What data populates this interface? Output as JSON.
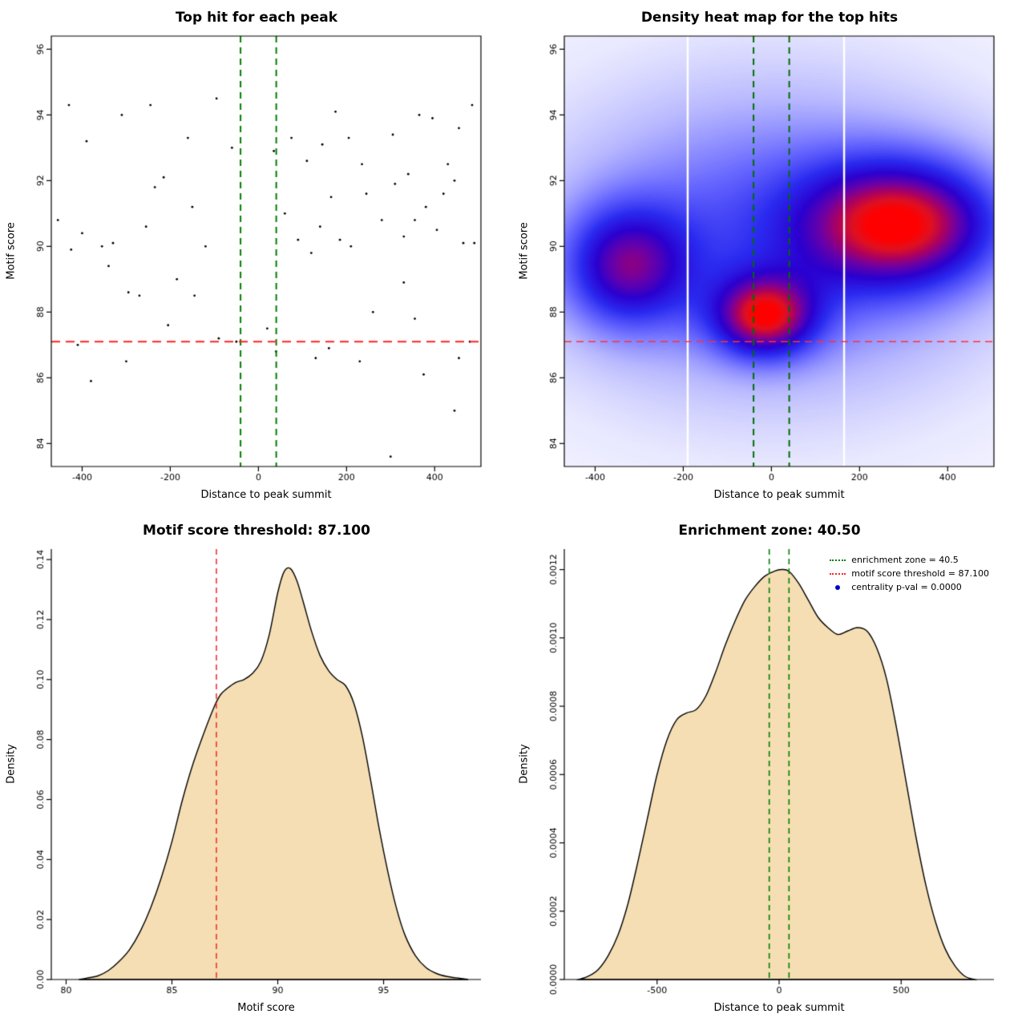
{
  "figure": {
    "background": "#ffffff"
  },
  "chart_data": [
    {
      "type": "scatter",
      "title": "Top hit for each peak",
      "xlabel": "Distance to peak summit",
      "ylabel": "Motif score",
      "xlim": [
        -470,
        505
      ],
      "ylim": [
        83.3,
        96.4
      ],
      "xticks": [
        -400,
        -200,
        0,
        200,
        400
      ],
      "xtick_labels": [
        "-400",
        "-200",
        "0",
        "200",
        "400"
      ],
      "yticks": [
        84,
        86,
        88,
        90,
        92,
        94,
        96
      ],
      "ytick_labels": [
        "84",
        "86",
        "88",
        "90",
        "92",
        "94",
        "96"
      ],
      "frame": "box",
      "grid": false,
      "point_color": "#000000",
      "point_radius": 1.4,
      "points": [
        [
          -455,
          90.8
        ],
        [
          -430,
          94.3
        ],
        [
          -425,
          89.9
        ],
        [
          -410,
          87.0
        ],
        [
          -400,
          90.4
        ],
        [
          -390,
          93.2
        ],
        [
          -380,
          85.9
        ],
        [
          -355,
          90.0
        ],
        [
          -340,
          89.4
        ],
        [
          -330,
          90.1
        ],
        [
          -310,
          94.0
        ],
        [
          -300,
          86.5
        ],
        [
          -295,
          88.6
        ],
        [
          -270,
          88.5
        ],
        [
          -255,
          90.6
        ],
        [
          -245,
          94.3
        ],
        [
          -235,
          91.8
        ],
        [
          -215,
          92.1
        ],
        [
          -205,
          87.6
        ],
        [
          -185,
          89.0
        ],
        [
          -160,
          93.3
        ],
        [
          -150,
          91.2
        ],
        [
          -145,
          88.5
        ],
        [
          -120,
          90.0
        ],
        [
          -95,
          94.5
        ],
        [
          -90,
          87.2
        ],
        [
          -60,
          93.0
        ],
        [
          -50,
          87.1
        ],
        [
          20,
          87.5
        ],
        [
          35,
          92.9
        ],
        [
          40,
          86.8
        ],
        [
          60,
          91.0
        ],
        [
          75,
          93.3
        ],
        [
          90,
          90.2
        ],
        [
          110,
          92.6
        ],
        [
          120,
          89.8
        ],
        [
          130,
          86.6
        ],
        [
          140,
          90.6
        ],
        [
          145,
          93.1
        ],
        [
          160,
          86.9
        ],
        [
          165,
          91.5
        ],
        [
          175,
          94.1
        ],
        [
          185,
          90.2
        ],
        [
          205,
          93.3
        ],
        [
          210,
          90.0
        ],
        [
          230,
          86.5
        ],
        [
          235,
          92.5
        ],
        [
          245,
          91.6
        ],
        [
          260,
          88.0
        ],
        [
          280,
          90.8
        ],
        [
          300,
          83.6
        ],
        [
          305,
          93.4
        ],
        [
          310,
          91.9
        ],
        [
          330,
          88.9
        ],
        [
          330,
          90.3
        ],
        [
          340,
          92.2
        ],
        [
          355,
          87.8
        ],
        [
          355,
          90.8
        ],
        [
          365,
          94.0
        ],
        [
          375,
          86.1
        ],
        [
          380,
          91.2
        ],
        [
          395,
          93.9
        ],
        [
          405,
          90.5
        ],
        [
          420,
          91.6
        ],
        [
          430,
          92.5
        ],
        [
          445,
          85.0
        ],
        [
          445,
          92.0
        ],
        [
          455,
          86.6
        ],
        [
          455,
          93.6
        ],
        [
          465,
          90.1
        ],
        [
          480,
          87.1
        ],
        [
          485,
          94.3
        ],
        [
          490,
          90.1
        ]
      ],
      "hline": {
        "y": 87.1,
        "color": "#ff2222",
        "dash": [
          11,
          7
        ],
        "width": 2
      },
      "vlines": {
        "xs": [
          -40.5,
          40.5
        ],
        "color": "#007d00",
        "dash": [
          8,
          6
        ],
        "width": 2
      }
    },
    {
      "type": "heatmap",
      "title": "Density heat map for the top hits",
      "xlabel": "Distance to peak summit",
      "ylabel": "Motif score",
      "xlim": [
        -470,
        505
      ],
      "ylim": [
        83.3,
        96.4
      ],
      "xticks": [
        -400,
        -200,
        0,
        200,
        400
      ],
      "xtick_labels": [
        "-400",
        "-200",
        "0",
        "200",
        "400"
      ],
      "yticks": [
        84,
        86,
        88,
        90,
        92,
        94,
        96
      ],
      "ytick_labels": [
        "84",
        "86",
        "88",
        "90",
        "92",
        "94",
        "96"
      ],
      "frame": "box",
      "kernels": [
        {
          "x": 300,
          "y": 90.7,
          "sx": 155,
          "sy": 1.35,
          "w": 1.0
        },
        {
          "x": -15,
          "y": 87.85,
          "sx": 80,
          "sy": 0.85,
          "w": 0.93
        },
        {
          "x": -330,
          "y": 89.4,
          "sx": 100,
          "sy": 1.3,
          "w": 0.72
        },
        {
          "x": 10,
          "y": 90.2,
          "sx": 330,
          "sy": 3.0,
          "w": 0.45
        },
        {
          "x": 0,
          "y": 90.0,
          "sx": 620,
          "sy": 6.0,
          "w": 0.22
        }
      ],
      "colormap": [
        {
          "t": 0.0,
          "c": "#ffffff"
        },
        {
          "t": 0.1,
          "c": "#e8e8ff"
        },
        {
          "t": 0.22,
          "c": "#b8b8ff"
        },
        {
          "t": 0.38,
          "c": "#6868ff"
        },
        {
          "t": 0.52,
          "c": "#2a2af0"
        },
        {
          "t": 0.64,
          "c": "#2a00cf"
        },
        {
          "t": 0.74,
          "c": "#6a00a8"
        },
        {
          "t": 0.82,
          "c": "#a80064"
        },
        {
          "t": 0.9,
          "c": "#e01020"
        },
        {
          "t": 0.96,
          "c": "#ff0000"
        },
        {
          "t": 1.0,
          "c": "#ff0000"
        }
      ],
      "white_lines": [
        -190,
        165
      ],
      "hline": {
        "y": 87.1,
        "color": "#ff3333",
        "dash": [
          9,
          6
        ],
        "width": 1.6
      },
      "vlines": {
        "xs": [
          -40.5,
          40.5
        ],
        "color": "#006e00",
        "dash": [
          8,
          6
        ],
        "width": 2
      }
    },
    {
      "type": "density",
      "title": "Motif score threshold: 87.100",
      "xlabel": "Motif score",
      "ylabel": "Density",
      "xlim": [
        79.3,
        99.6
      ],
      "ylim": [
        0,
        0.1435
      ],
      "xticks": [
        80,
        85,
        90,
        95
      ],
      "xtick_labels": [
        "80",
        "85",
        "90",
        "95"
      ],
      "yticks": [
        0,
        0.02,
        0.04,
        0.06,
        0.08,
        0.1,
        0.12,
        0.14
      ],
      "ytick_labels": [
        "0.00",
        "0.02",
        "0.04",
        "0.06",
        "0.08",
        "0.10",
        "0.12",
        "0.14"
      ],
      "frame": "axes",
      "fill": "#f5deb3",
      "stroke": "#000000",
      "curve": [
        [
          80.6,
          0.0
        ],
        [
          81.0,
          0.0005
        ],
        [
          81.5,
          0.0012
        ],
        [
          82.0,
          0.003
        ],
        [
          82.5,
          0.006
        ],
        [
          83.0,
          0.01
        ],
        [
          83.5,
          0.016
        ],
        [
          84.0,
          0.024
        ],
        [
          84.5,
          0.034
        ],
        [
          85.0,
          0.046
        ],
        [
          85.5,
          0.06
        ],
        [
          86.0,
          0.072
        ],
        [
          86.5,
          0.082
        ],
        [
          87.0,
          0.091
        ],
        [
          87.3,
          0.095
        ],
        [
          87.6,
          0.097
        ],
        [
          88.0,
          0.099
        ],
        [
          88.4,
          0.1
        ],
        [
          88.8,
          0.102
        ],
        [
          89.2,
          0.106
        ],
        [
          89.6,
          0.115
        ],
        [
          90.0,
          0.129
        ],
        [
          90.3,
          0.136
        ],
        [
          90.6,
          0.137
        ],
        [
          90.9,
          0.133
        ],
        [
          91.2,
          0.126
        ],
        [
          91.6,
          0.116
        ],
        [
          92.0,
          0.108
        ],
        [
          92.4,
          0.103
        ],
        [
          92.8,
          0.1
        ],
        [
          93.2,
          0.098
        ],
        [
          93.6,
          0.092
        ],
        [
          94.0,
          0.081
        ],
        [
          94.4,
          0.066
        ],
        [
          94.8,
          0.05
        ],
        [
          95.2,
          0.036
        ],
        [
          95.6,
          0.024
        ],
        [
          96.0,
          0.015
        ],
        [
          96.5,
          0.008
        ],
        [
          97.0,
          0.004
        ],
        [
          97.5,
          0.002
        ],
        [
          98.0,
          0.001
        ],
        [
          98.6,
          0.0004
        ],
        [
          99.0,
          0.0
        ]
      ],
      "vlines": {
        "xs": [
          87.1
        ],
        "color": "#ee3333",
        "dash": [
          7,
          5
        ],
        "width": 1.6
      }
    },
    {
      "type": "density",
      "title": "Enrichment zone: 40.50",
      "xlabel": "Distance to peak summit",
      "ylabel": "Density",
      "xlim": [
        -880,
        880
      ],
      "ylim": [
        0,
        0.00126
      ],
      "xticks": [
        -500,
        0,
        500
      ],
      "xtick_labels": [
        "-500",
        "0",
        "500"
      ],
      "yticks": [
        0,
        0.0002,
        0.0004,
        0.0006,
        0.0008,
        0.001,
        0.0012
      ],
      "ytick_labels": [
        "0.0000",
        "0.0002",
        "0.0004",
        "0.0006",
        "0.0008",
        "0.0010",
        "0.0012"
      ],
      "frame": "axes",
      "fill": "#f5deb3",
      "stroke": "#000000",
      "curve": [
        [
          -820,
          0.0
        ],
        [
          -780,
          1e-05
        ],
        [
          -740,
          3e-05
        ],
        [
          -700,
          7e-05
        ],
        [
          -660,
          0.00013
        ],
        [
          -620,
          0.00022
        ],
        [
          -580,
          0.00034
        ],
        [
          -540,
          0.00047
        ],
        [
          -500,
          0.0006
        ],
        [
          -460,
          0.0007
        ],
        [
          -420,
          0.00076
        ],
        [
          -380,
          0.00078
        ],
        [
          -340,
          0.00079
        ],
        [
          -300,
          0.00083
        ],
        [
          -260,
          0.0009
        ],
        [
          -220,
          0.00098
        ],
        [
          -180,
          0.00105
        ],
        [
          -140,
          0.00111
        ],
        [
          -100,
          0.00115
        ],
        [
          -60,
          0.00118
        ],
        [
          -20,
          0.001195
        ],
        [
          10,
          0.0012
        ],
        [
          40,
          0.001195
        ],
        [
          80,
          0.00116
        ],
        [
          120,
          0.00111
        ],
        [
          160,
          0.00106
        ],
        [
          200,
          0.00103
        ],
        [
          240,
          0.00101
        ],
        [
          280,
          0.00102
        ],
        [
          320,
          0.00103
        ],
        [
          360,
          0.00102
        ],
        [
          400,
          0.00097
        ],
        [
          440,
          0.00088
        ],
        [
          480,
          0.00074
        ],
        [
          520,
          0.00058
        ],
        [
          560,
          0.00042
        ],
        [
          600,
          0.00028
        ],
        [
          640,
          0.00017
        ],
        [
          680,
          9e-05
        ],
        [
          720,
          4e-05
        ],
        [
          760,
          1e-05
        ],
        [
          800,
          0.0
        ]
      ],
      "vlines": {
        "xs": [
          -40.5,
          40.5
        ],
        "color": "#007d00",
        "dash": [
          7,
          5
        ],
        "width": 1.6
      },
      "legend": [
        {
          "label": "enrichment zone = 40.5",
          "color": "#007d00",
          "type": "line"
        },
        {
          "label": "motif score threshold = 87.100",
          "color": "#ff2222",
          "type": "line"
        },
        {
          "label": "centrality p-val = 0.0000",
          "color": "#0000cc",
          "type": "point"
        }
      ]
    }
  ]
}
